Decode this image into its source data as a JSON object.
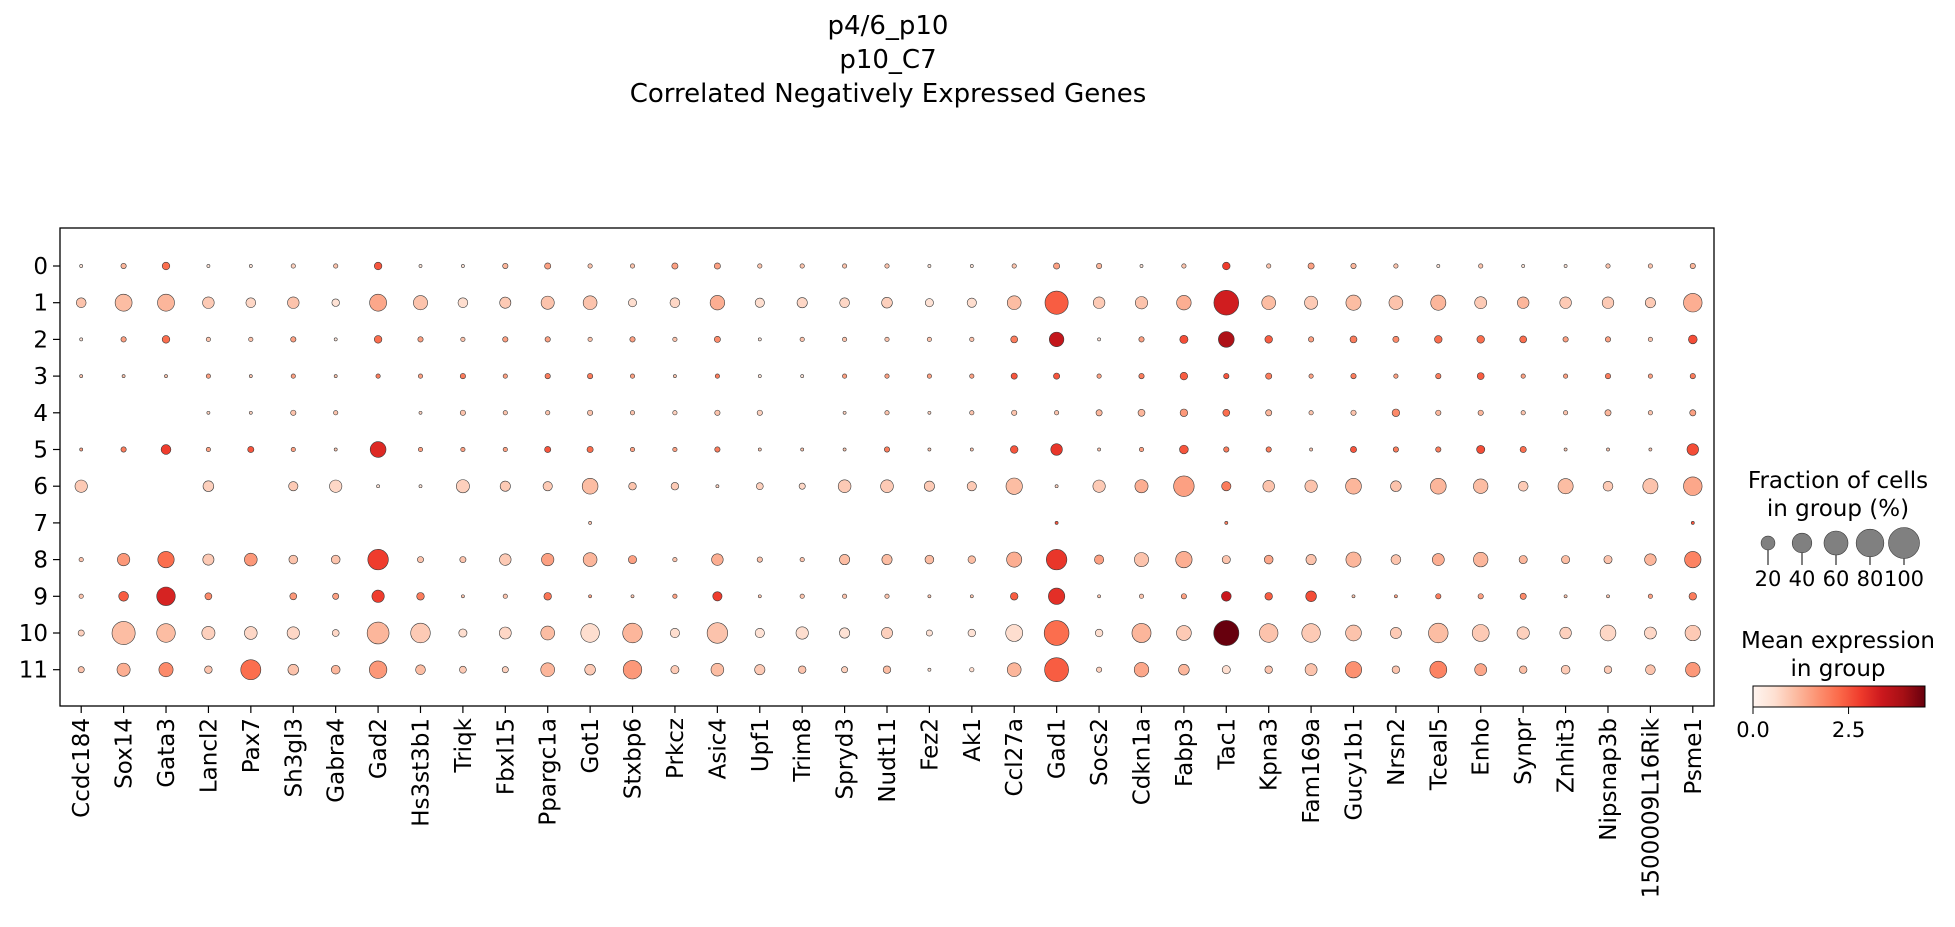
{
  "chart_data": {
    "type": "dotplot",
    "title_lines": [
      "p4/6_p10",
      "p10_C7",
      "Correlated Negatively Expressed Genes"
    ],
    "genes": [
      "Ccdc184",
      "Sox14",
      "Gata3",
      "Lancl2",
      "Pax7",
      "Sh3gl3",
      "Gabra4",
      "Gad2",
      "Hs3st3b1",
      "Triqk",
      "Fbxl15",
      "Ppargc1a",
      "Got1",
      "Stxbp6",
      "Prkcz",
      "Asic4",
      "Upf1",
      "Trim8",
      "Spryd3",
      "Nudt11",
      "Fez2",
      "Ak1",
      "Ccl27a",
      "Gad1",
      "Socs2",
      "Cdkn1a",
      "Fabp3",
      "Tac1",
      "Kpna3",
      "Fam169a",
      "Gucy1b1",
      "Nrsn2",
      "Tceal5",
      "Enho",
      "Synpr",
      "Znhit3",
      "Nipsnap3b",
      "1500009L16Rik",
      "Psme1"
    ],
    "groups": [
      "0",
      "1",
      "2",
      "3",
      "4",
      "5",
      "6",
      "7",
      "8",
      "9",
      "10",
      "11"
    ],
    "fraction": [
      [
        1,
        3,
        6,
        1,
        1,
        2,
        2,
        6,
        1,
        1,
        3,
        4,
        2,
        2,
        4,
        4,
        2,
        2,
        2,
        2,
        1,
        1,
        2,
        4,
        3,
        1,
        2,
        6,
        2,
        4,
        3,
        2,
        1,
        2,
        1,
        1,
        2,
        2,
        3
      ],
      [
        10,
        30,
        30,
        14,
        10,
        14,
        6,
        30,
        21,
        10,
        13,
        18,
        20,
        7,
        10,
        22,
        9,
        11,
        10,
        12,
        7,
        9,
        20,
        56,
        14,
        16,
        22,
        64,
        20,
        18,
        24,
        20,
        24,
        15,
        14,
        14,
        14,
        11,
        36
      ],
      [
        1,
        3,
        6,
        2,
        2,
        3,
        1,
        6,
        3,
        2,
        3,
        3,
        2,
        3,
        2,
        4,
        1,
        2,
        2,
        2,
        2,
        2,
        5,
        22,
        1,
        3,
        7,
        26,
        6,
        3,
        5,
        4,
        6,
        6,
        5,
        3,
        3,
        2,
        8
      ],
      [
        1,
        1,
        1,
        2,
        1,
        2,
        1,
        2,
        2,
        3,
        2,
        3,
        3,
        2,
        1,
        2,
        1,
        1,
        2,
        2,
        2,
        2,
        4,
        4,
        2,
        3,
        6,
        3,
        4,
        2,
        3,
        2,
        3,
        5,
        2,
        2,
        3,
        2,
        3
      ],
      [
        0,
        0,
        0,
        1,
        1,
        3,
        2,
        0,
        1,
        3,
        2,
        2,
        3,
        2,
        2,
        3,
        3,
        0,
        1,
        2,
        1,
        2,
        3,
        2,
        4,
        5,
        6,
        5,
        4,
        2,
        3,
        6,
        3,
        3,
        2,
        2,
        4,
        2,
        4
      ],
      [
        1,
        3,
        10,
        2,
        4,
        2,
        1,
        26,
        2,
        2,
        2,
        4,
        4,
        2,
        2,
        3,
        1,
        1,
        1,
        3,
        1,
        1,
        6,
        14,
        1,
        2,
        8,
        3,
        3,
        1,
        4,
        3,
        3,
        7,
        4,
        1,
        1,
        1,
        14
      ],
      [
        16,
        0,
        0,
        12,
        0,
        9,
        16,
        1,
        1,
        18,
        11,
        9,
        26,
        6,
        6,
        1,
        5,
        4,
        17,
        17,
        11,
        9,
        28,
        1,
        16,
        18,
        44,
        9,
        14,
        16,
        26,
        12,
        26,
        22,
        10,
        24,
        10,
        24,
        36
      ],
      [
        0,
        0,
        0,
        0,
        0,
        0,
        0,
        0,
        0,
        0,
        0,
        0,
        1,
        0,
        0,
        0,
        0,
        0,
        0,
        0,
        0,
        0,
        0,
        1,
        0,
        0,
        0,
        1,
        0,
        0,
        0,
        0,
        0,
        0,
        0,
        0,
        0,
        0,
        1
      ],
      [
        2,
        16,
        28,
        13,
        17,
        8,
        8,
        44,
        4,
        4,
        14,
        16,
        20,
        7,
        2,
        14,
        3,
        2,
        11,
        11,
        8,
        6,
        24,
        44,
        9,
        21,
        28,
        7,
        8,
        11,
        24,
        10,
        15,
        22,
        7,
        7,
        7,
        14,
        28
      ],
      [
        2,
        10,
        36,
        5,
        0,
        5,
        4,
        16,
        6,
        1,
        2,
        6,
        1,
        1,
        2,
        9,
        1,
        2,
        2,
        2,
        1,
        1,
        6,
        28,
        1,
        2,
        3,
        10,
        6,
        12,
        1,
        1,
        3,
        3,
        4,
        1,
        1,
        2,
        6
      ],
      [
        4,
        56,
        36,
        18,
        17,
        16,
        5,
        50,
        40,
        7,
        15,
        20,
        36,
        40,
        9,
        44,
        9,
        16,
        11,
        13,
        4,
        6,
        30,
        64,
        6,
        38,
        23,
        66,
        36,
        36,
        26,
        13,
        40,
        30,
        16,
        14,
        26,
        15,
        25
      ],
      [
        4,
        18,
        21,
        6,
        42,
        12,
        8,
        32,
        10,
        5,
        4,
        20,
        12,
        36,
        7,
        17,
        11,
        6,
        4,
        6,
        1,
        2,
        20,
        60,
        3,
        22,
        12,
        7,
        6,
        15,
        28,
        6,
        30,
        15,
        6,
        8,
        6,
        10,
        22
      ]
    ],
    "mean_expression": [
      [
        0.5,
        1.2,
        2.2,
        0.5,
        0.5,
        0.8,
        1.0,
        2.5,
        0.5,
        0.5,
        1.2,
        1.5,
        1.0,
        1.0,
        1.5,
        1.5,
        1.0,
        1.0,
        1.0,
        1.0,
        0.5,
        0.5,
        1.0,
        1.5,
        1.2,
        0.5,
        1.0,
        2.8,
        1.0,
        1.5,
        1.2,
        1.0,
        0.5,
        1.0,
        0.5,
        0.5,
        1.0,
        1.0,
        1.2
      ],
      [
        1.0,
        1.1,
        1.2,
        0.9,
        0.7,
        1.0,
        0.5,
        1.4,
        1.0,
        0.6,
        0.9,
        1.0,
        1.0,
        0.6,
        0.7,
        1.3,
        0.6,
        0.7,
        0.7,
        0.8,
        0.5,
        0.6,
        1.1,
        2.4,
        0.9,
        1.0,
        1.3,
        3.3,
        1.1,
        0.9,
        1.1,
        1.0,
        1.2,
        0.9,
        1.2,
        0.9,
        0.9,
        0.9,
        1.3
      ],
      [
        0.5,
        1.5,
        2.2,
        1.0,
        1.0,
        1.5,
        0.5,
        2.2,
        1.5,
        1.0,
        1.5,
        1.5,
        1.0,
        1.5,
        1.0,
        1.8,
        0.5,
        1.0,
        1.0,
        1.0,
        1.0,
        1.0,
        2.0,
        3.5,
        0.5,
        1.5,
        2.6,
        3.8,
        2.4,
        1.5,
        2.0,
        1.8,
        2.2,
        2.2,
        2.2,
        1.5,
        1.5,
        1.0,
        2.6
      ],
      [
        1.0,
        1.0,
        1.0,
        1.5,
        1.0,
        1.5,
        1.0,
        2.0,
        1.5,
        2.0,
        1.5,
        2.0,
        2.0,
        1.5,
        1.0,
        2.0,
        0.5,
        0.5,
        1.5,
        1.5,
        1.5,
        1.5,
        2.5,
        2.5,
        1.5,
        2.0,
        2.4,
        2.5,
        2.0,
        1.5,
        2.0,
        1.5,
        2.0,
        2.4,
        1.5,
        1.5,
        2.0,
        1.5,
        2.0
      ],
      [
        0,
        0,
        0,
        0.8,
        0.8,
        1.0,
        1.0,
        0,
        0.8,
        1.0,
        1.0,
        1.0,
        1.0,
        1.0,
        0.8,
        1.0,
        0.8,
        0,
        0.8,
        1.0,
        0.8,
        1.0,
        1.0,
        1.0,
        1.2,
        1.2,
        1.6,
        2.2,
        1.2,
        1.0,
        1.0,
        1.8,
        1.2,
        1.2,
        1.0,
        1.0,
        1.2,
        1.0,
        1.5
      ],
      [
        1.5,
        2.0,
        2.8,
        1.5,
        2.5,
        1.5,
        1.0,
        3.1,
        1.5,
        1.5,
        1.5,
        2.5,
        2.2,
        1.5,
        1.5,
        2.0,
        1.0,
        1.0,
        1.0,
        2.0,
        1.0,
        1.0,
        2.5,
        2.9,
        1.0,
        1.5,
        2.5,
        2.0,
        2.0,
        1.0,
        2.5,
        2.0,
        2.0,
        2.6,
        2.2,
        1.0,
        1.0,
        1.0,
        2.6
      ],
      [
        0.9,
        0,
        0,
        0.8,
        0,
        0.9,
        0.7,
        0.5,
        0.5,
        0.8,
        0.9,
        0.9,
        1.1,
        1.0,
        0.9,
        0.8,
        0.8,
        0.7,
        0.9,
        0.9,
        0.9,
        0.9,
        1.1,
        0.8,
        0.9,
        1.3,
        1.5,
        2.0,
        1.0,
        1.0,
        1.2,
        1.0,
        1.2,
        1.1,
        0.9,
        1.1,
        0.9,
        1.0,
        1.4
      ],
      [
        0,
        0,
        0,
        0,
        0,
        0,
        0,
        0,
        0,
        0,
        0,
        0,
        1.0,
        0,
        0,
        0,
        0,
        0,
        0,
        0,
        0,
        0,
        0,
        2.5,
        0,
        0,
        0,
        2.0,
        0,
        0,
        0,
        0,
        0,
        0,
        0,
        0,
        0,
        0,
        2.5
      ],
      [
        1.0,
        1.6,
        2.2,
        0.9,
        1.6,
        1.0,
        1.0,
        2.8,
        1.0,
        1.0,
        0.9,
        1.5,
        1.2,
        1.5,
        1.0,
        1.3,
        1.0,
        1.0,
        1.1,
        1.1,
        1.1,
        1.1,
        1.3,
        2.9,
        1.5,
        1.0,
        1.3,
        1.0,
        1.4,
        1.0,
        1.2,
        1.0,
        1.3,
        1.2,
        1.2,
        1.1,
        1.0,
        1.2,
        1.9
      ],
      [
        1.0,
        2.4,
        3.2,
        1.8,
        0,
        1.6,
        1.5,
        2.8,
        2.0,
        1.0,
        1.0,
        2.1,
        1.5,
        1.0,
        1.5,
        2.8,
        1.0,
        1.0,
        1.0,
        1.0,
        1.0,
        1.0,
        2.4,
        3.0,
        1.0,
        1.0,
        1.5,
        3.4,
        2.4,
        2.6,
        1.0,
        1.5,
        2.0,
        1.5,
        1.8,
        1.0,
        1.0,
        1.5,
        2.0
      ],
      [
        0.8,
        1.1,
        1.1,
        0.8,
        0.7,
        0.7,
        0.7,
        1.2,
        0.9,
        0.6,
        0.7,
        1.1,
        0.6,
        1.2,
        0.6,
        1.0,
        0.5,
        0.6,
        0.5,
        0.8,
        0.5,
        0.5,
        0.6,
        2.2,
        0.6,
        1.2,
        0.9,
        4.5,
        1.0,
        0.9,
        1.0,
        0.9,
        1.1,
        0.9,
        0.8,
        0.8,
        0.7,
        0.7,
        0.9
      ],
      [
        1.0,
        1.3,
        1.8,
        1.0,
        2.2,
        1.0,
        1.2,
        1.6,
        1.1,
        0.9,
        0.8,
        1.2,
        0.9,
        1.6,
        0.9,
        1.1,
        0.9,
        1.0,
        0.8,
        1.1,
        0.6,
        0.6,
        1.2,
        2.4,
        0.8,
        1.4,
        1.2,
        0.6,
        1.0,
        1.0,
        1.7,
        1.0,
        1.9,
        1.4,
        1.1,
        0.9,
        0.9,
        1.0,
        1.6
      ]
    ],
    "size_legend": {
      "title_lines": [
        "Fraction of cells",
        "in group (%)"
      ],
      "values": [
        20,
        40,
        60,
        80,
        100
      ],
      "labels": [
        "20",
        "40",
        "60",
        "80",
        "100"
      ]
    },
    "color_legend": {
      "title_lines": [
        "Mean expression",
        "in group"
      ],
      "range": [
        0,
        4.5
      ],
      "ticks": [
        "0.0",
        "2.5"
      ],
      "tick_values": [
        0,
        2.5
      ],
      "colormap": "Reds"
    }
  }
}
